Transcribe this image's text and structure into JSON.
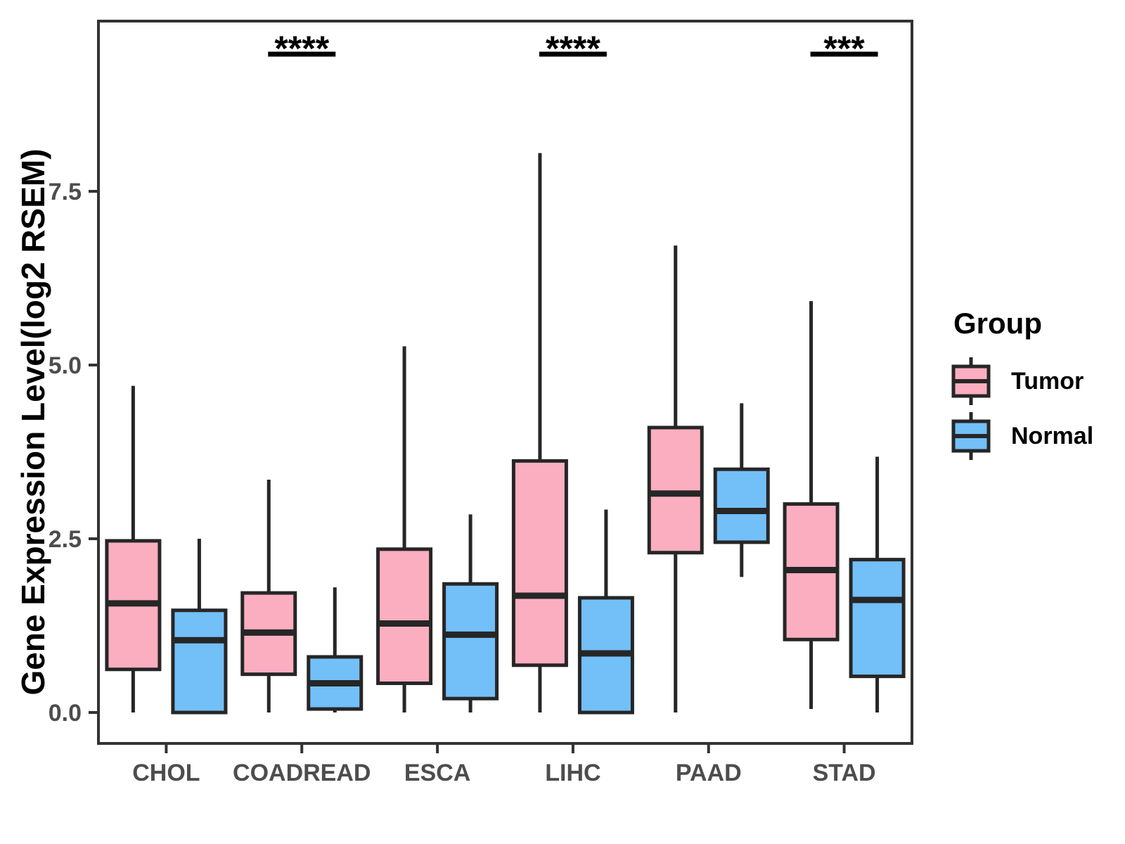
{
  "colors": {
    "tumor_fill": "#FBAEC0",
    "normal_fill": "#73BFF8",
    "box_stroke": "#262626",
    "panel_border": "#333333",
    "tick_label": "#4d4d4d",
    "significance": "#000000",
    "background": "#ffffff"
  },
  "legend": {
    "title": "Group",
    "items": [
      {
        "label": "Tumor",
        "color": "#FBAEC0"
      },
      {
        "label": "Normal",
        "color": "#73BFF8"
      }
    ]
  },
  "chart_data": {
    "type": "boxplot",
    "title": "",
    "xlabel": "",
    "ylabel": "Gene Expression Level(log2 RSEM)",
    "categories": [
      "CHOL",
      "COADREAD",
      "ESCA",
      "LIHC",
      "PAAD",
      "STAD"
    ],
    "yticks": [
      {
        "value": 0.0,
        "label": "0.0"
      },
      {
        "value": 2.5,
        "label": "2.5"
      },
      {
        "value": 5.0,
        "label": "5.0"
      },
      {
        "value": 7.5,
        "label": "7.5"
      }
    ],
    "ylim": [
      -0.45,
      9.95
    ],
    "grid": false,
    "legend_position": "right",
    "series": [
      {
        "name": "Tumor",
        "fill": "#FBAEC0",
        "boxes": [
          {
            "category": "CHOL",
            "min": 0.0,
            "q1": 0.62,
            "median": 1.57,
            "q3": 2.47,
            "max": 4.7
          },
          {
            "category": "COADREAD",
            "min": 0.0,
            "q1": 0.55,
            "median": 1.15,
            "q3": 1.72,
            "max": 3.35
          },
          {
            "category": "ESCA",
            "min": 0.0,
            "q1": 0.42,
            "median": 1.28,
            "q3": 2.35,
            "max": 5.27
          },
          {
            "category": "LIHC",
            "min": 0.0,
            "q1": 0.68,
            "median": 1.68,
            "q3": 3.62,
            "max": 8.05
          },
          {
            "category": "PAAD",
            "min": 0.0,
            "q1": 2.3,
            "median": 3.15,
            "q3": 4.1,
            "max": 6.72
          },
          {
            "category": "STAD",
            "min": 0.05,
            "q1": 1.05,
            "median": 2.05,
            "q3": 3.0,
            "max": 5.92
          }
        ]
      },
      {
        "name": "Normal",
        "fill": "#73BFF8",
        "boxes": [
          {
            "category": "CHOL",
            "min": 0.0,
            "q1": 0.0,
            "median": 1.04,
            "q3": 1.47,
            "max": 2.5
          },
          {
            "category": "COADREAD",
            "min": 0.0,
            "q1": 0.05,
            "median": 0.42,
            "q3": 0.8,
            "max": 1.8
          },
          {
            "category": "ESCA",
            "min": 0.0,
            "q1": 0.2,
            "median": 1.12,
            "q3": 1.85,
            "max": 2.85
          },
          {
            "category": "LIHC",
            "min": 0.0,
            "q1": 0.0,
            "median": 0.85,
            "q3": 1.65,
            "max": 2.92
          },
          {
            "category": "PAAD",
            "min": 1.95,
            "q1": 2.45,
            "median": 2.9,
            "q3": 3.5,
            "max": 4.45
          },
          {
            "category": "STAD",
            "min": 0.0,
            "q1": 0.52,
            "median": 1.62,
            "q3": 2.2,
            "max": 3.68
          }
        ]
      }
    ],
    "significance": [
      {
        "category": "COADREAD",
        "label": "****"
      },
      {
        "category": "LIHC",
        "label": "****"
      },
      {
        "category": "STAD",
        "label": "***"
      }
    ]
  }
}
